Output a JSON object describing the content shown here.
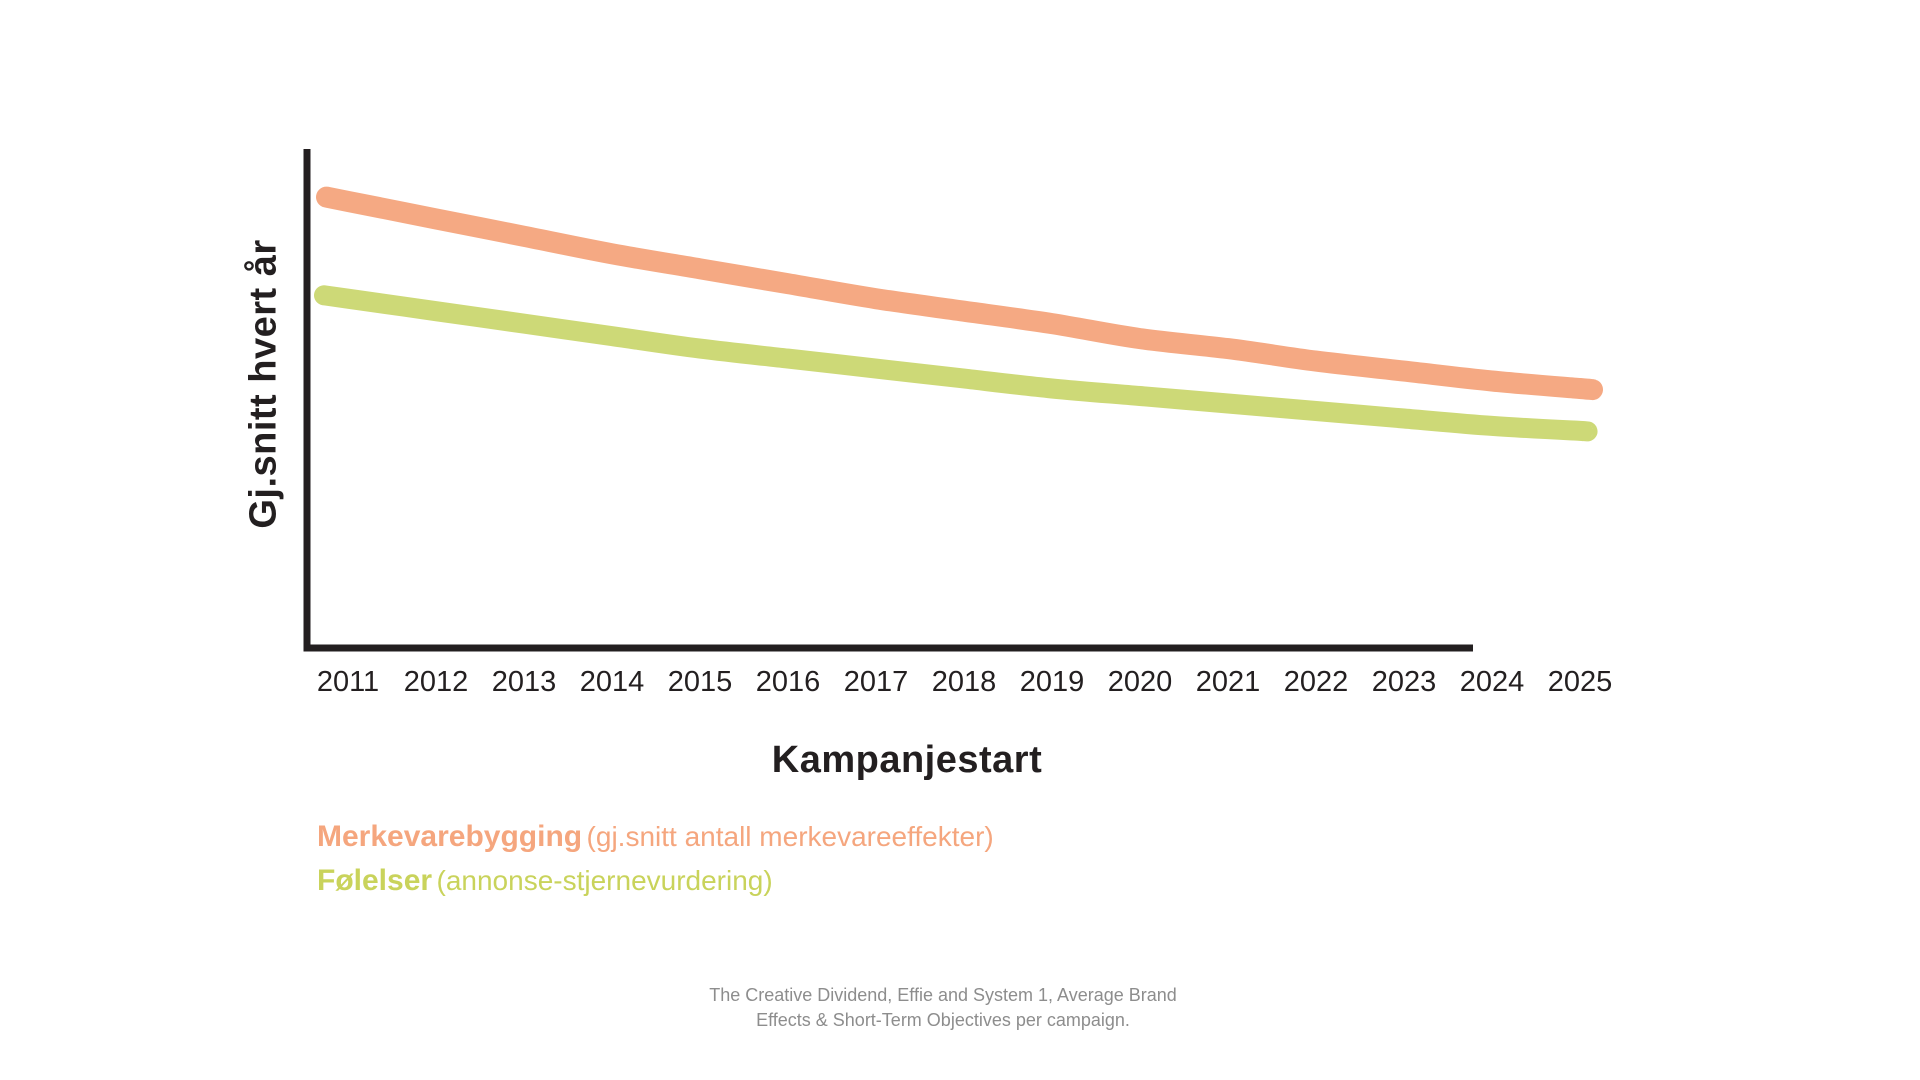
{
  "axes": {
    "y_label": "Gj.snitt hvert år",
    "x_label": "Kampanjestart"
  },
  "legend": {
    "items": [
      {
        "name": "Merkevarebygging",
        "description": "(gj.snitt antall merkevareeffekter)",
        "color": "#F5A67E"
      },
      {
        "name": "Følelser",
        "description": "(annonse-stjernevurdering)",
        "color": "#C9D35B"
      }
    ]
  },
  "footer": {
    "line1": "The Creative Dividend, Effie and System 1, Average Brand",
    "line2": "Effects & Short-Term Objectives per campaign."
  },
  "colors": {
    "axis": "#231F20",
    "text": "#231F20",
    "footer_text": "#8D8D8D",
    "background": "#FFFFFF",
    "series_orange": "#F5A983",
    "series_green": "#CDD977"
  },
  "chart_data": {
    "type": "line",
    "title": "",
    "xlabel": "Kampanjestart",
    "ylabel": "Gj.snitt hvert år",
    "categories": [
      "2011",
      "2012",
      "2013",
      "2014",
      "2015",
      "2016",
      "2017",
      "2018",
      "2019",
      "2020",
      "2021",
      "2022",
      "2023",
      "2024",
      "2025"
    ],
    "series": [
      {
        "name": "Merkevarebygging (gj.snitt antall merkevareeffekter)",
        "color": "#F5A983",
        "line_width": 21,
        "values": [
          89.5,
          86,
          82.5,
          79,
          76,
          73,
          70,
          67.5,
          65,
          62,
          60,
          57.5,
          55.5,
          53.5,
          52
        ]
      },
      {
        "name": "Følelser (annonse-stjernevurdering)",
        "color": "#CDD977",
        "line_width": 20,
        "values": [
          70,
          67.5,
          65,
          62.5,
          60,
          58,
          56,
          54,
          52,
          50.5,
          49,
          47.5,
          46,
          44.5,
          43.5
        ]
      }
    ],
    "y_axis_labeled": false,
    "y_units": "relative scale 0-100 (y-axis unlabeled in source; values estimated from line positions)",
    "xlim": [
      "2011",
      "2025"
    ],
    "grid": false,
    "legend_position": "below-left"
  }
}
